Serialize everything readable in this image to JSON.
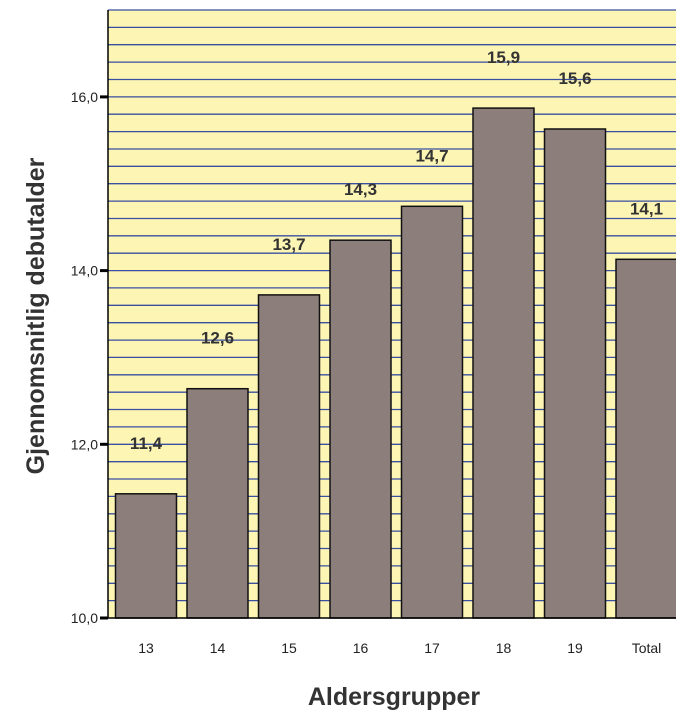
{
  "chart_data": {
    "type": "bar",
    "title": "",
    "xlabel": "Aldersgrupper",
    "ylabel": "Gjennomsnitlig debutalder",
    "categories": [
      "13",
      "14",
      "15",
      "16",
      "17",
      "18",
      "19",
      "Total"
    ],
    "values": [
      11.43,
      12.64,
      13.72,
      14.35,
      14.74,
      15.87,
      15.63,
      14.13
    ],
    "data_labels": [
      "11,4",
      "12,6",
      "13,7",
      "14,3",
      "14,7",
      "15,9",
      "15,6",
      "14,1"
    ],
    "ylim": [
      10.0,
      17.0
    ],
    "yticks": [
      10.0,
      12.0,
      14.0,
      16.0
    ],
    "ytick_labels": [
      "10,0",
      "12,0",
      "14,0",
      "16,0"
    ],
    "grid": true,
    "grid_step": 0.2,
    "colors": {
      "bar": "#8C7E7A",
      "bar_edge": "#111111",
      "plot_background": "#FDF5B4",
      "grid": "#3A4FA0"
    }
  }
}
